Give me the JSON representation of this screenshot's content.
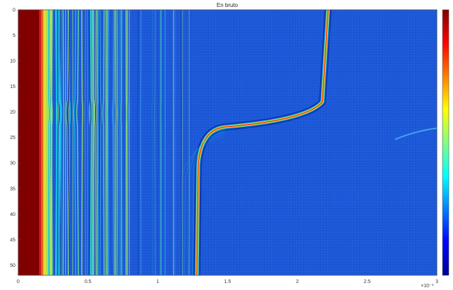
{
  "chart_data": {
    "type": "heatmap",
    "title": "En bruto",
    "xlabel": "",
    "ylabel": "",
    "x_ticks": [
      0,
      0.5,
      1,
      1.5,
      2,
      2.5,
      3
    ],
    "x_tick_labels": [
      "0",
      "0.5",
      "1",
      "1.5",
      "2",
      "2.5",
      "3"
    ],
    "x_exponent": "×10⁻³",
    "xlim": [
      0,
      0.003
    ],
    "y_ticks": [
      0,
      5,
      10,
      15,
      20,
      25,
      30,
      35,
      40,
      45,
      50
    ],
    "y_tick_labels": [
      "0",
      "5",
      "10",
      "15",
      "20",
      "25",
      "30",
      "35",
      "40",
      "45",
      "50"
    ],
    "ylim": [
      0,
      52
    ],
    "y_reversed": true,
    "colormap": "jet",
    "colorbar": "right",
    "colors": {
      "background": "#1c58d8",
      "dark_red": "#800000",
      "red": "#e8160a",
      "yellow": "#f6ee22",
      "cyan": "#18d8e8",
      "dark_blue": "#06105a"
    },
    "features": [
      {
        "name": "saturated band",
        "x_range": [
          0,
          0.00015
        ],
        "level": "max"
      },
      {
        "name": "dense oscillation zone",
        "x_range": [
          0.00015,
          0.0013
        ],
        "level": "mixed"
      },
      {
        "name": "curved echo",
        "start_x": 0.00128,
        "elbow_y": 23.5,
        "end_x": 0.00222,
        "end_y": 0,
        "level": "high"
      },
      {
        "name": "late faint echo",
        "start_x": 0.0027,
        "end_x": 0.003,
        "y": 24,
        "level": "low"
      }
    ]
  }
}
